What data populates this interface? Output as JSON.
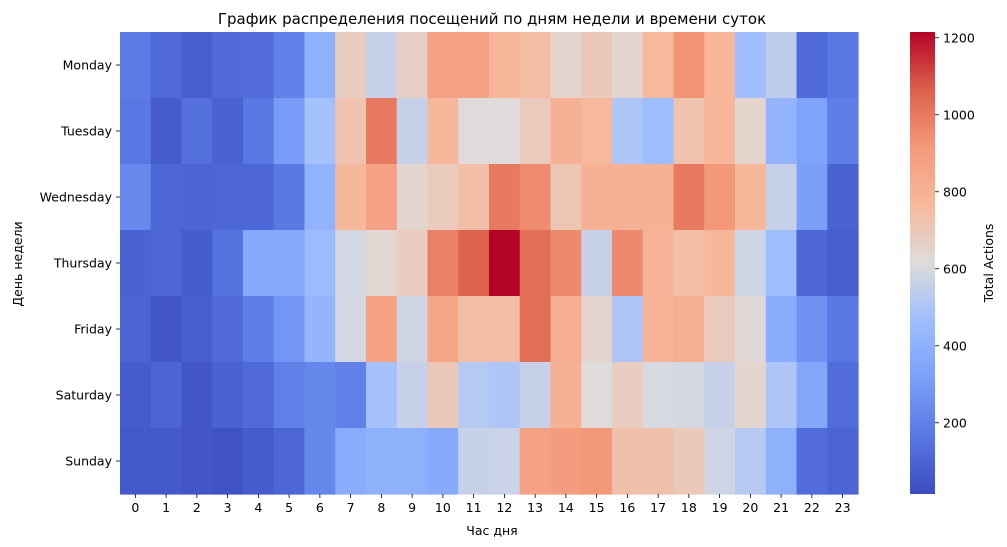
{
  "chart_data": {
    "type": "heatmap",
    "title": "График распределения посещений по дням недели и времени суток",
    "xlabel": "Час дня",
    "ylabel": "День недели",
    "colorbar_label": "Total Actions",
    "colormap": "coolwarm",
    "vmin": 15,
    "vmax": 1215,
    "colorbar_ticks": [
      200,
      400,
      600,
      800,
      1000,
      1200
    ],
    "x_categories": [
      "0",
      "1",
      "2",
      "3",
      "4",
      "5",
      "6",
      "7",
      "8",
      "9",
      "10",
      "11",
      "12",
      "13",
      "14",
      "15",
      "16",
      "17",
      "18",
      "19",
      "20",
      "21",
      "22",
      "23"
    ],
    "y_categories": [
      "Monday",
      "Tuesday",
      "Wednesday",
      "Thursday",
      "Friday",
      "Saturday",
      "Sunday"
    ],
    "values": [
      [
        180,
        120,
        80,
        120,
        130,
        200,
        400,
        680,
        560,
        670,
        880,
        880,
        780,
        750,
        650,
        700,
        650,
        760,
        930,
        770,
        470,
        540,
        120,
        170
      ],
      [
        170,
        70,
        140,
        90,
        170,
        300,
        480,
        720,
        1000,
        560,
        780,
        620,
        620,
        690,
        800,
        760,
        500,
        460,
        720,
        780,
        650,
        420,
        330,
        190
      ],
      [
        230,
        110,
        100,
        110,
        110,
        170,
        410,
        770,
        880,
        650,
        690,
        740,
        1000,
        950,
        710,
        800,
        800,
        800,
        1000,
        920,
        770,
        560,
        320,
        90
      ],
      [
        90,
        110,
        70,
        150,
        360,
        360,
        450,
        590,
        640,
        680,
        980,
        1060,
        1215,
        1030,
        960,
        560,
        960,
        790,
        740,
        770,
        580,
        460,
        110,
        80
      ],
      [
        100,
        50,
        80,
        120,
        190,
        280,
        420,
        590,
        880,
        580,
        860,
        740,
        740,
        1030,
        820,
        650,
        500,
        790,
        810,
        690,
        630,
        380,
        260,
        170
      ],
      [
        70,
        100,
        50,
        90,
        120,
        200,
        220,
        200,
        480,
        560,
        700,
        520,
        500,
        560,
        800,
        620,
        680,
        600,
        590,
        560,
        650,
        500,
        350,
        130
      ],
      [
        60,
        60,
        50,
        40,
        70,
        110,
        220,
        380,
        400,
        400,
        370,
        560,
        570,
        880,
        900,
        920,
        730,
        730,
        700,
        580,
        520,
        400,
        130,
        100
      ]
    ]
  }
}
